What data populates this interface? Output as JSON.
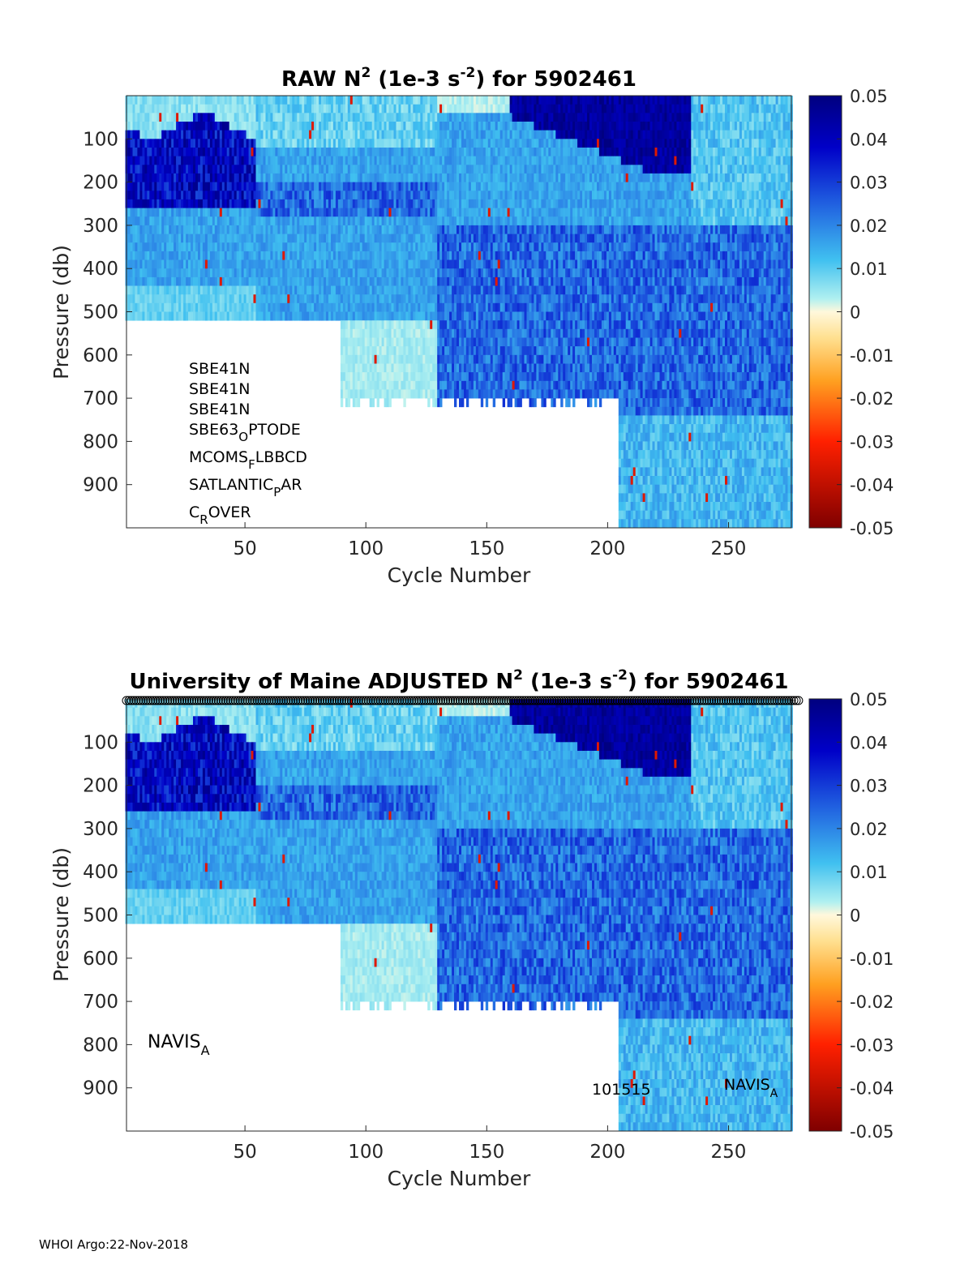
{
  "footer": "WHOI Argo:22-Nov-2018",
  "colors": {
    "colormap": [
      "#7f0000",
      "#ff0000",
      "#ff8000",
      "#fff5cc",
      "#ffffff",
      "#7fffff",
      "#2080ff",
      "#0000d0",
      "#00007f"
    ],
    "empty": "#ffffff"
  },
  "chart_data": [
    {
      "type": "heatmap",
      "title": {
        "main": "RAW N",
        "sup": "2",
        "mid": " (1e-3 s",
        "sup2": "-2",
        "end": ") for 5902461"
      },
      "xlabel": "Cycle Number",
      "ylabel": "Pressure (db)",
      "xlim": [
        1,
        276
      ],
      "ylim": [
        0,
        1000
      ],
      "y_reversed": true,
      "xticks": [
        "50",
        "100",
        "150",
        "200",
        "250"
      ],
      "yticks": [
        "100",
        "200",
        "300",
        "400",
        "500",
        "600",
        "700",
        "800",
        "900"
      ],
      "colorbar": {
        "clim": [
          -0.05,
          0.05
        ],
        "ticks": [
          "0.05",
          "0.04",
          "0.03",
          "0.02",
          "0.01",
          "0",
          "-0.01",
          "-0.02",
          "-0.03",
          "-0.04",
          "-0.05"
        ]
      },
      "profile_depth": [
        {
          "cycles": [
            1,
            89
          ],
          "max_pressure": 510
        },
        {
          "cycles": [
            90,
            204
          ],
          "max_pressure": 700
        },
        {
          "cycles": [
            205,
            276
          ],
          "max_pressure": 1000
        }
      ],
      "annotations": [
        {
          "base": "SBE41N",
          "sub": "",
          "tail": ""
        },
        {
          "base": "SBE41N",
          "sub": "",
          "tail": ""
        },
        {
          "base": "SBE41N",
          "sub": "",
          "tail": ""
        },
        {
          "base": "SBE63",
          "sub": "O",
          "tail": "PTODE"
        },
        {
          "base": "MCOMS",
          "sub": "F",
          "tail": "LBBCD"
        },
        {
          "base": "SATLANTIC",
          "sub": "P",
          "tail": "AR"
        },
        {
          "base": "C",
          "sub": "R",
          "tail": "OVER"
        }
      ]
    },
    {
      "type": "heatmap",
      "title": {
        "main": "University of Maine  ADJUSTED N",
        "sup": "2",
        "mid": " (1e-3 s",
        "sup2": "-2",
        "end": ") for 5902461"
      },
      "xlabel": "Cycle Number",
      "ylabel": "Pressure (db)",
      "xlim": [
        1,
        276
      ],
      "ylim": [
        0,
        1000
      ],
      "y_reversed": true,
      "xticks": [
        "50",
        "100",
        "150",
        "200",
        "250"
      ],
      "yticks": [
        "100",
        "200",
        "300",
        "400",
        "500",
        "600",
        "700",
        "800",
        "900"
      ],
      "colorbar": {
        "clim": [
          -0.05,
          0.05
        ],
        "ticks": [
          "0.05",
          "0.04",
          "0.03",
          "0.02",
          "0.01",
          "0",
          "-0.01",
          "-0.02",
          "-0.03",
          "-0.04",
          "-0.05"
        ]
      },
      "profile_depth": [
        {
          "cycles": [
            1,
            89
          ],
          "max_pressure": 510
        },
        {
          "cycles": [
            90,
            204
          ],
          "max_pressure": 700
        },
        {
          "cycles": [
            205,
            276
          ],
          "max_pressure": 1000
        }
      ],
      "qc_markers_row": true,
      "labels": {
        "left": {
          "base": "NAVIS",
          "sub": "A"
        },
        "serial": "101515",
        "right": {
          "base": "NAVIS",
          "sub": "A"
        }
      }
    }
  ]
}
